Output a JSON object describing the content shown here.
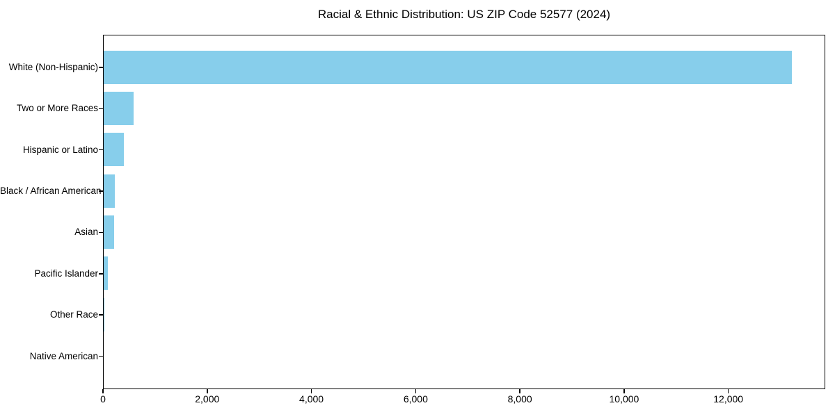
{
  "figure": {
    "background_color": "#ffffff",
    "spine_color": "#000000",
    "text_color": "#000000"
  },
  "chart_data": {
    "type": "bar",
    "orientation": "horizontal",
    "title": "Racial & Ethnic Distribution: US ZIP Code 52577 (2024)",
    "categories": [
      "White (Non-Hispanic)",
      "Two or More Races",
      "Hispanic or Latino",
      "Black / African American",
      "Asian",
      "Pacific Islander",
      "Other Race",
      "Native American"
    ],
    "values": [
      13200,
      570,
      390,
      215,
      200,
      75,
      13,
      0
    ],
    "bar_color": "#87CEEB",
    "xlabel": "",
    "ylabel": "",
    "xlim": [
      0,
      13860
    ],
    "xticks": {
      "values": [
        0,
        2000,
        4000,
        6000,
        8000,
        10000,
        12000
      ],
      "labels": [
        "0",
        "2,000",
        "4,000",
        "6,000",
        "8,000",
        "10,000",
        "12,000"
      ]
    },
    "grid": false,
    "legend": null
  }
}
